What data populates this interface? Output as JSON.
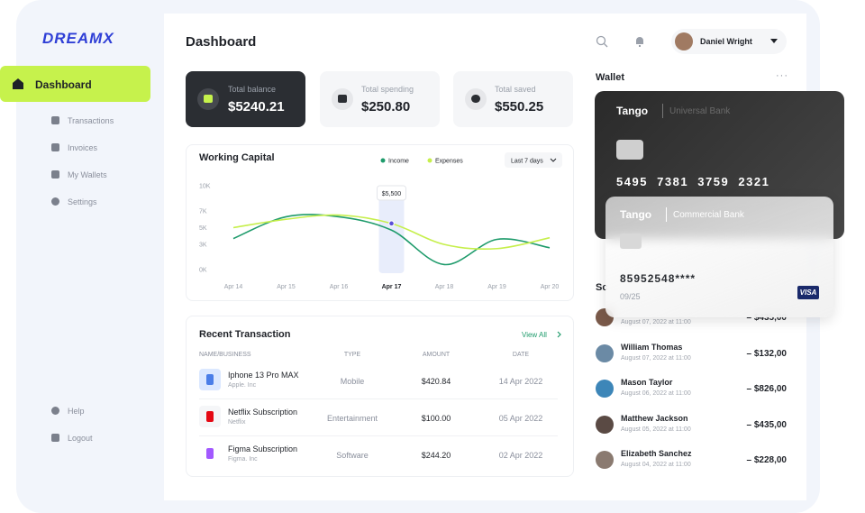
{
  "logo": "DREAMX",
  "nav": [
    "Dashboard",
    "Transactions",
    "Invoices",
    "My Wallets",
    "Settings"
  ],
  "nav_bottom": [
    "Help",
    "Logout"
  ],
  "header": {
    "title": "Dashboard",
    "user": "Daniel Wright"
  },
  "stats": [
    {
      "label": "Total balance",
      "value": "$5240.21"
    },
    {
      "label": "Total spending",
      "value": "$250.80"
    },
    {
      "label": "Total saved",
      "value": "$550.25"
    }
  ],
  "chart_data": {
    "type": "line",
    "title": "Working Capital",
    "filter": "Last 7 days",
    "categories": [
      "Apr 14",
      "Apr 15",
      "Apr 16",
      "Apr 17",
      "Apr 18",
      "Apr 19",
      "Apr 20"
    ],
    "ylim": [
      0,
      10000
    ],
    "yticks": [
      {
        "value": 0,
        "label": "0K"
      },
      {
        "value": 3000,
        "label": "3K"
      },
      {
        "value": 5000,
        "label": "5K"
      },
      {
        "value": 7000,
        "label": "7K"
      },
      {
        "value": 10000,
        "label": "10K"
      }
    ],
    "series": [
      {
        "name": "Income",
        "color": "#1e9b6b",
        "values": [
          3700,
          6300,
          6300,
          4700,
          600,
          3600,
          2600
        ]
      },
      {
        "name": "Expenses",
        "color": "#c6ef4c",
        "values": [
          5000,
          6000,
          6500,
          5500,
          3000,
          2500,
          3800
        ],
        "value_labels": [
          null,
          null,
          null,
          "$5,500",
          null,
          null,
          null
        ]
      }
    ]
  },
  "transactions": {
    "title": "Recent Transaction",
    "view_all": "View All",
    "columns": [
      "NAME/BUSINESS",
      "TYPE",
      "AMOUNT",
      "DATE"
    ],
    "rows": [
      [
        "Iphone 13 Pro MAX",
        "Apple. Inc",
        "Mobile",
        "$420.84",
        "14 Apr 2022"
      ],
      [
        "Netflix Subscription",
        "Netflix",
        "Entertainment",
        "$100.00",
        "05 Apr 2022"
      ],
      [
        "Figma Subscription",
        "Figma. Inc",
        "Software",
        "$244.20",
        "02 Apr 2022"
      ]
    ]
  },
  "wallet": {
    "title": "Wallet",
    "cards": [
      {
        "brand": "Tango",
        "bank": "Universal Bank",
        "number": "5495  7381  3759  2321"
      },
      {
        "brand": "Tango",
        "bank": "Commercial Bank",
        "number": "85952548****",
        "expiry": "09/25",
        "network": "VISA"
      }
    ]
  },
  "schedule": {
    "title": "Sc",
    "items": [
      {
        "date": "August 07, 2022 at 11:00",
        "amount": "– $435,00"
      },
      {
        "name": "William Thomas",
        "date": "August 07, 2022 at 11:00",
        "amount": "– $132,00"
      },
      {
        "name": "Mason Taylor",
        "date": "August 06, 2022 at 11:00",
        "amount": "– $826,00"
      },
      {
        "name": "Matthew Jackson",
        "date": "August 05, 2022 at 11:00",
        "amount": "– $435,00"
      },
      {
        "name": "Elizabeth Sanchez",
        "date": "August 04, 2022 at 11:00",
        "amount": "– $228,00"
      }
    ]
  }
}
